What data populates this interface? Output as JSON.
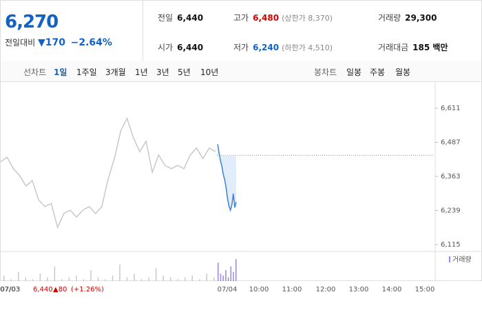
{
  "header": {
    "price": "6,270",
    "change_label": "전일대비",
    "change": "▼170",
    "change_pct": "−2.64%",
    "stats": [
      {
        "label": "전일",
        "value": "6,440"
      },
      {
        "label": "고가",
        "value": "6,480",
        "note": "(상한가 8,370)"
      },
      {
        "label": "거래량",
        "value": "29,300"
      },
      {
        "label": "시가",
        "value": "6,440"
      },
      {
        "label": "저가",
        "value": "6,240",
        "note": "(하한가 4,510)"
      },
      {
        "label": "거래대금",
        "value": "185 백만"
      }
    ]
  },
  "tabs": {
    "line_label": "선차트",
    "line": [
      "1일",
      "1주일",
      "3개월",
      "1년",
      "3년",
      "5년",
      "10년"
    ],
    "candle_label": "봉차트",
    "candle": [
      "일봉",
      "주봉",
      "월봉"
    ]
  },
  "chart_data": {
    "type": "line",
    "ylim": [
      6090,
      6684
    ],
    "yticks": [
      {
        "value": 6611,
        "label": "6,611"
      },
      {
        "value": 6487,
        "label": "6,487"
      },
      {
        "value": 6363,
        "label": "6,363"
      },
      {
        "value": 6239,
        "label": "6,239"
      },
      {
        "value": 6115,
        "label": "6,115"
      }
    ],
    "reference": 6440,
    "x_labels": [
      "07/03",
      "07/04",
      "10:00",
      "11:00",
      "12:00",
      "13:00",
      "14:00",
      "15:00"
    ],
    "series": [
      {
        "color": "#c8c8c8",
        "values": [
          6416,
          6433,
          6391,
          6366,
          6328,
          6348,
          6278,
          6253,
          6265,
          6178,
          6228,
          6240,
          6215,
          6240,
          6253,
          6228,
          6253,
          6353,
          6428,
          6529,
          6574,
          6504,
          6453,
          6491,
          6378,
          6441,
          6403,
          6391,
          6403,
          6391,
          6441,
          6466,
          6428,
          6466,
          6453
        ]
      },
      {
        "color": "#3d7fd6",
        "values": [
          6480,
          6450,
          6420,
          6400,
          6370,
          6350,
          6320,
          6280,
          6255,
          6240,
          6260,
          6300,
          6250,
          6270
        ]
      }
    ],
    "volume": {
      "name": "거래량",
      "prev_color": "#c8c8c8",
      "color": "#9b86d9",
      "prev": [
        3,
        1,
        5,
        2,
        1,
        4,
        2,
        8,
        1,
        2,
        3,
        1,
        6,
        2,
        1,
        3,
        9,
        2,
        4,
        1,
        2,
        7,
        3,
        2,
        1,
        2,
        3,
        1,
        4,
        2
      ],
      "today": [
        10,
        4,
        3,
        6,
        2,
        8,
        5,
        12
      ]
    },
    "prev_day": {
      "date": "07/03",
      "close": "6,440",
      "change": "▲80",
      "change_pct": "(+1.26%)"
    }
  }
}
